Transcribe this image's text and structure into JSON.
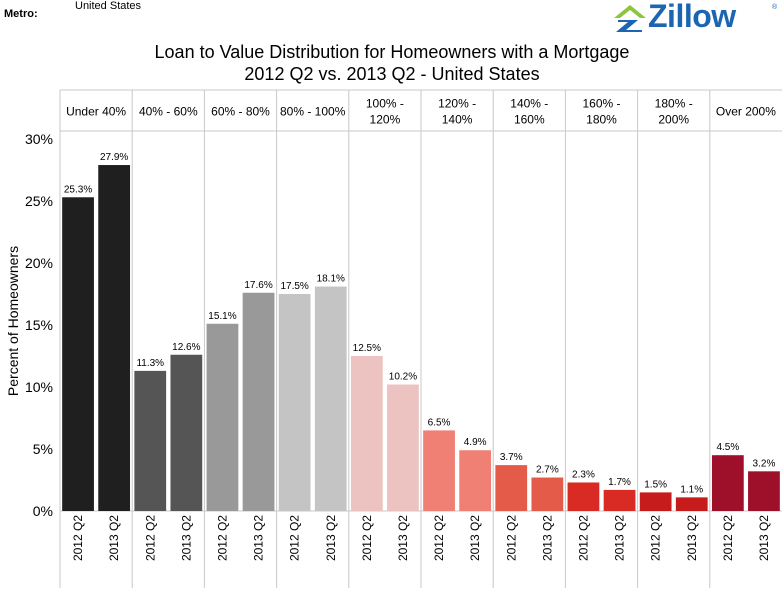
{
  "header": {
    "metro_label": "Metro:",
    "metro_value": "United States",
    "logo_text": "Zillow",
    "logo_reg": "®"
  },
  "chart_data": {
    "type": "bar",
    "title": "Loan to Value Distribution for Homeowners with a Mortgage",
    "subtitle": "2012 Q2 vs. 2013 Q2 - United States",
    "ylabel": "Percent of Homeowners",
    "ylim": [
      0,
      30
    ],
    "yticks": [
      "0%",
      "5%",
      "10%",
      "15%",
      "20%",
      "25%",
      "30%"
    ],
    "grid": false,
    "legend": "none",
    "series_labels": [
      "2012 Q2",
      "2013 Q2"
    ],
    "groups": [
      {
        "label": [
          "Under 40%"
        ],
        "color": "#1f1f1f",
        "values": [
          25.3,
          27.9
        ],
        "value_labels": [
          "25.3%",
          "27.9%"
        ]
      },
      {
        "label": [
          "40% - 60%"
        ],
        "color": "#555555",
        "values": [
          11.3,
          12.6
        ],
        "value_labels": [
          "11.3%",
          "12.6%"
        ]
      },
      {
        "label": [
          "60% - 80%"
        ],
        "color": "#999999",
        "values": [
          15.1,
          17.6
        ],
        "value_labels": [
          "15.1%",
          "17.6%"
        ]
      },
      {
        "label": [
          "80% - 100%"
        ],
        "color": "#c4c4c4",
        "values": [
          17.5,
          18.1
        ],
        "value_labels": [
          "17.5%",
          "18.1%"
        ]
      },
      {
        "label": [
          "100% -",
          "120%"
        ],
        "color": "#ecc3c1",
        "values": [
          12.5,
          10.2
        ],
        "value_labels": [
          "12.5%",
          "10.2%"
        ]
      },
      {
        "label": [
          "120% -",
          "140%"
        ],
        "color": "#f07f74",
        "values": [
          6.5,
          4.9
        ],
        "value_labels": [
          "6.5%",
          "4.9%"
        ]
      },
      {
        "label": [
          "140% -",
          "160%"
        ],
        "color": "#e55b4a",
        "values": [
          3.7,
          2.7
        ],
        "value_labels": [
          "3.7%",
          "2.7%"
        ]
      },
      {
        "label": [
          "160% -",
          "180%"
        ],
        "color": "#d92b24",
        "values": [
          2.3,
          1.7
        ],
        "value_labels": [
          "2.3%",
          "1.7%"
        ]
      },
      {
        "label": [
          "180% -",
          "200%"
        ],
        "color": "#c71c1c",
        "values": [
          1.5,
          1.1
        ],
        "value_labels": [
          "1.5%",
          "1.1%"
        ]
      },
      {
        "label": [
          "Over 200%"
        ],
        "color": "#9e0f2a",
        "values": [
          4.5,
          3.2
        ],
        "value_labels": [
          "4.5%",
          "3.2%"
        ]
      }
    ]
  }
}
